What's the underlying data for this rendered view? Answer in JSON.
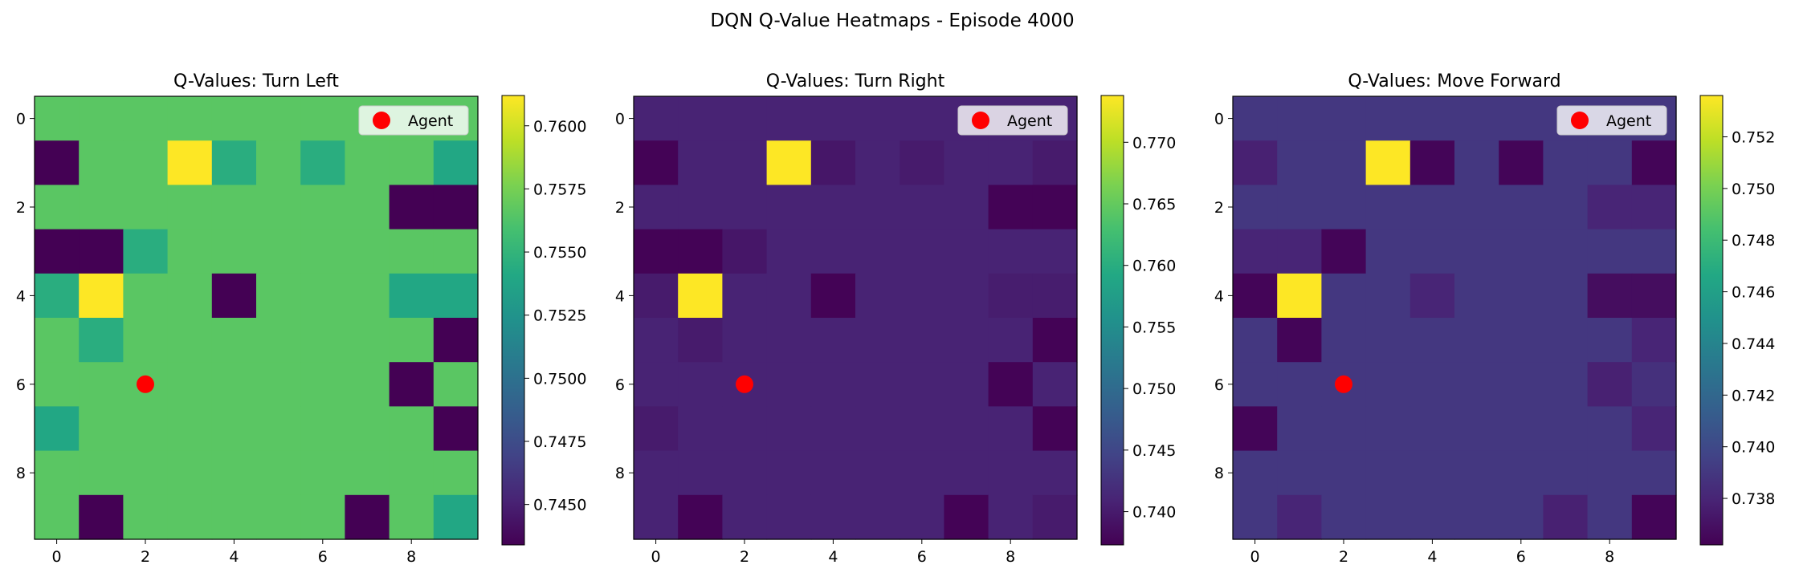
{
  "figure": {
    "title": "DQN Q-Value Heatmaps - Episode 4000"
  },
  "chart_data": [
    {
      "type": "heatmap",
      "title": "Q-Values: Turn Left",
      "x_ticks": [
        "0",
        "2",
        "4",
        "6",
        "8"
      ],
      "y_ticks": [
        "0",
        "2",
        "4",
        "6",
        "8"
      ],
      "colorbar": {
        "colormap": "viridis",
        "range": [
          0.7434,
          0.7612
        ],
        "ticks": [
          "0.7450",
          "0.7475",
          "0.7500",
          "0.7525",
          "0.7550",
          "0.7575",
          "0.7600"
        ]
      },
      "legend": {
        "label": "Agent",
        "position": "top-right"
      },
      "agent": {
        "x": 2,
        "y": 6,
        "color": "#ff0000"
      },
      "grid": [
        [
          0.7566,
          0.7566,
          0.7566,
          0.7566,
          0.7566,
          0.7566,
          0.7566,
          0.7566,
          0.7566,
          0.7566
        ],
        [
          0.7434,
          0.7566,
          0.7566,
          0.7612,
          0.7545,
          0.7566,
          0.7545,
          0.7566,
          0.7566,
          0.754
        ],
        [
          0.7566,
          0.7566,
          0.7566,
          0.7566,
          0.7566,
          0.7566,
          0.7566,
          0.7566,
          0.7434,
          0.7434
        ],
        [
          0.7434,
          0.7434,
          0.7545,
          0.7566,
          0.7566,
          0.7566,
          0.7566,
          0.7566,
          0.7566,
          0.7566
        ],
        [
          0.7545,
          0.7612,
          0.7566,
          0.7566,
          0.7434,
          0.7566,
          0.7566,
          0.7566,
          0.754,
          0.754
        ],
        [
          0.7566,
          0.7545,
          0.7566,
          0.7566,
          0.7566,
          0.7566,
          0.7566,
          0.7566,
          0.7566,
          0.7434
        ],
        [
          0.7566,
          0.7566,
          0.7566,
          0.7566,
          0.7566,
          0.7566,
          0.7566,
          0.7566,
          0.7434,
          0.7566
        ],
        [
          0.754,
          0.7566,
          0.7566,
          0.7566,
          0.7566,
          0.7566,
          0.7566,
          0.7566,
          0.7566,
          0.7434
        ],
        [
          0.7566,
          0.7566,
          0.7566,
          0.7566,
          0.7566,
          0.7566,
          0.7566,
          0.7566,
          0.7566,
          0.7566
        ],
        [
          0.7566,
          0.7434,
          0.7566,
          0.7566,
          0.7566,
          0.7566,
          0.7566,
          0.7434,
          0.7566,
          0.754
        ]
      ]
    },
    {
      "type": "heatmap",
      "title": "Q-Values: Turn Right",
      "x_ticks": [
        "0",
        "2",
        "4",
        "6",
        "8"
      ],
      "y_ticks": [
        "0",
        "2",
        "4",
        "6",
        "8"
      ],
      "colorbar": {
        "colormap": "viridis",
        "range": [
          0.7373,
          0.7738
        ],
        "ticks": [
          "0.740",
          "0.745",
          "0.750",
          "0.755",
          "0.760",
          "0.765",
          "0.770"
        ]
      },
      "legend": {
        "label": "Agent",
        "position": "top-right"
      },
      "agent": {
        "x": 2,
        "y": 6,
        "color": "#ff0000"
      },
      "grid": [
        [
          0.7408,
          0.7408,
          0.7408,
          0.7408,
          0.7408,
          0.7408,
          0.7408,
          0.7408,
          0.7408,
          0.7408
        ],
        [
          0.7375,
          0.7408,
          0.7408,
          0.7738,
          0.7395,
          0.7408,
          0.74,
          0.7408,
          0.7408,
          0.74
        ],
        [
          0.7408,
          0.7408,
          0.7408,
          0.7408,
          0.7408,
          0.7408,
          0.7408,
          0.7408,
          0.7375,
          0.7375
        ],
        [
          0.7375,
          0.7375,
          0.7395,
          0.7408,
          0.7408,
          0.7408,
          0.7408,
          0.7408,
          0.7408,
          0.7408
        ],
        [
          0.74,
          0.7738,
          0.7408,
          0.7408,
          0.7375,
          0.7408,
          0.7408,
          0.7408,
          0.7402,
          0.7402
        ],
        [
          0.7408,
          0.74,
          0.7408,
          0.7408,
          0.7408,
          0.7408,
          0.7408,
          0.7408,
          0.7408,
          0.7375
        ],
        [
          0.7408,
          0.7408,
          0.7408,
          0.7408,
          0.7408,
          0.7408,
          0.7408,
          0.7408,
          0.7375,
          0.7408
        ],
        [
          0.74,
          0.7408,
          0.7408,
          0.7408,
          0.7408,
          0.7408,
          0.7408,
          0.7408,
          0.7408,
          0.7375
        ],
        [
          0.7408,
          0.7408,
          0.7408,
          0.7408,
          0.7408,
          0.7408,
          0.7408,
          0.7408,
          0.7408,
          0.7408
        ],
        [
          0.7408,
          0.7375,
          0.7408,
          0.7408,
          0.7408,
          0.7408,
          0.7408,
          0.7375,
          0.7408,
          0.74
        ]
      ]
    },
    {
      "type": "heatmap",
      "title": "Q-Values: Move Forward",
      "x_ticks": [
        "0",
        "2",
        "4",
        "6",
        "8"
      ],
      "y_ticks": [
        "0",
        "2",
        "4",
        "6",
        "8"
      ],
      "colorbar": {
        "colormap": "viridis",
        "range": [
          0.7362,
          0.7536
        ],
        "ticks": [
          "0.738",
          "0.740",
          "0.742",
          "0.744",
          "0.746",
          "0.748",
          "0.750",
          "0.752"
        ]
      },
      "legend": {
        "label": "Agent",
        "position": "top-right"
      },
      "agent": {
        "x": 2,
        "y": 6,
        "color": "#ff0000"
      },
      "grid": [
        [
          0.739,
          0.739,
          0.739,
          0.739,
          0.739,
          0.739,
          0.739,
          0.739,
          0.739,
          0.739
        ],
        [
          0.7378,
          0.739,
          0.739,
          0.7536,
          0.7364,
          0.739,
          0.7364,
          0.739,
          0.739,
          0.7364
        ],
        [
          0.739,
          0.739,
          0.739,
          0.739,
          0.739,
          0.739,
          0.739,
          0.739,
          0.738,
          0.738
        ],
        [
          0.738,
          0.738,
          0.7364,
          0.739,
          0.739,
          0.739,
          0.739,
          0.739,
          0.739,
          0.739
        ],
        [
          0.7364,
          0.7536,
          0.739,
          0.739,
          0.738,
          0.739,
          0.739,
          0.739,
          0.7368,
          0.7368
        ],
        [
          0.739,
          0.7364,
          0.739,
          0.739,
          0.739,
          0.739,
          0.739,
          0.739,
          0.739,
          0.738
        ],
        [
          0.739,
          0.739,
          0.739,
          0.739,
          0.739,
          0.739,
          0.739,
          0.739,
          0.7378,
          0.7386
        ],
        [
          0.7364,
          0.739,
          0.739,
          0.739,
          0.739,
          0.739,
          0.739,
          0.739,
          0.739,
          0.738
        ],
        [
          0.739,
          0.739,
          0.739,
          0.739,
          0.739,
          0.739,
          0.739,
          0.739,
          0.739,
          0.739
        ],
        [
          0.739,
          0.738,
          0.739,
          0.739,
          0.739,
          0.739,
          0.739,
          0.7378,
          0.739,
          0.7364
        ]
      ]
    }
  ]
}
